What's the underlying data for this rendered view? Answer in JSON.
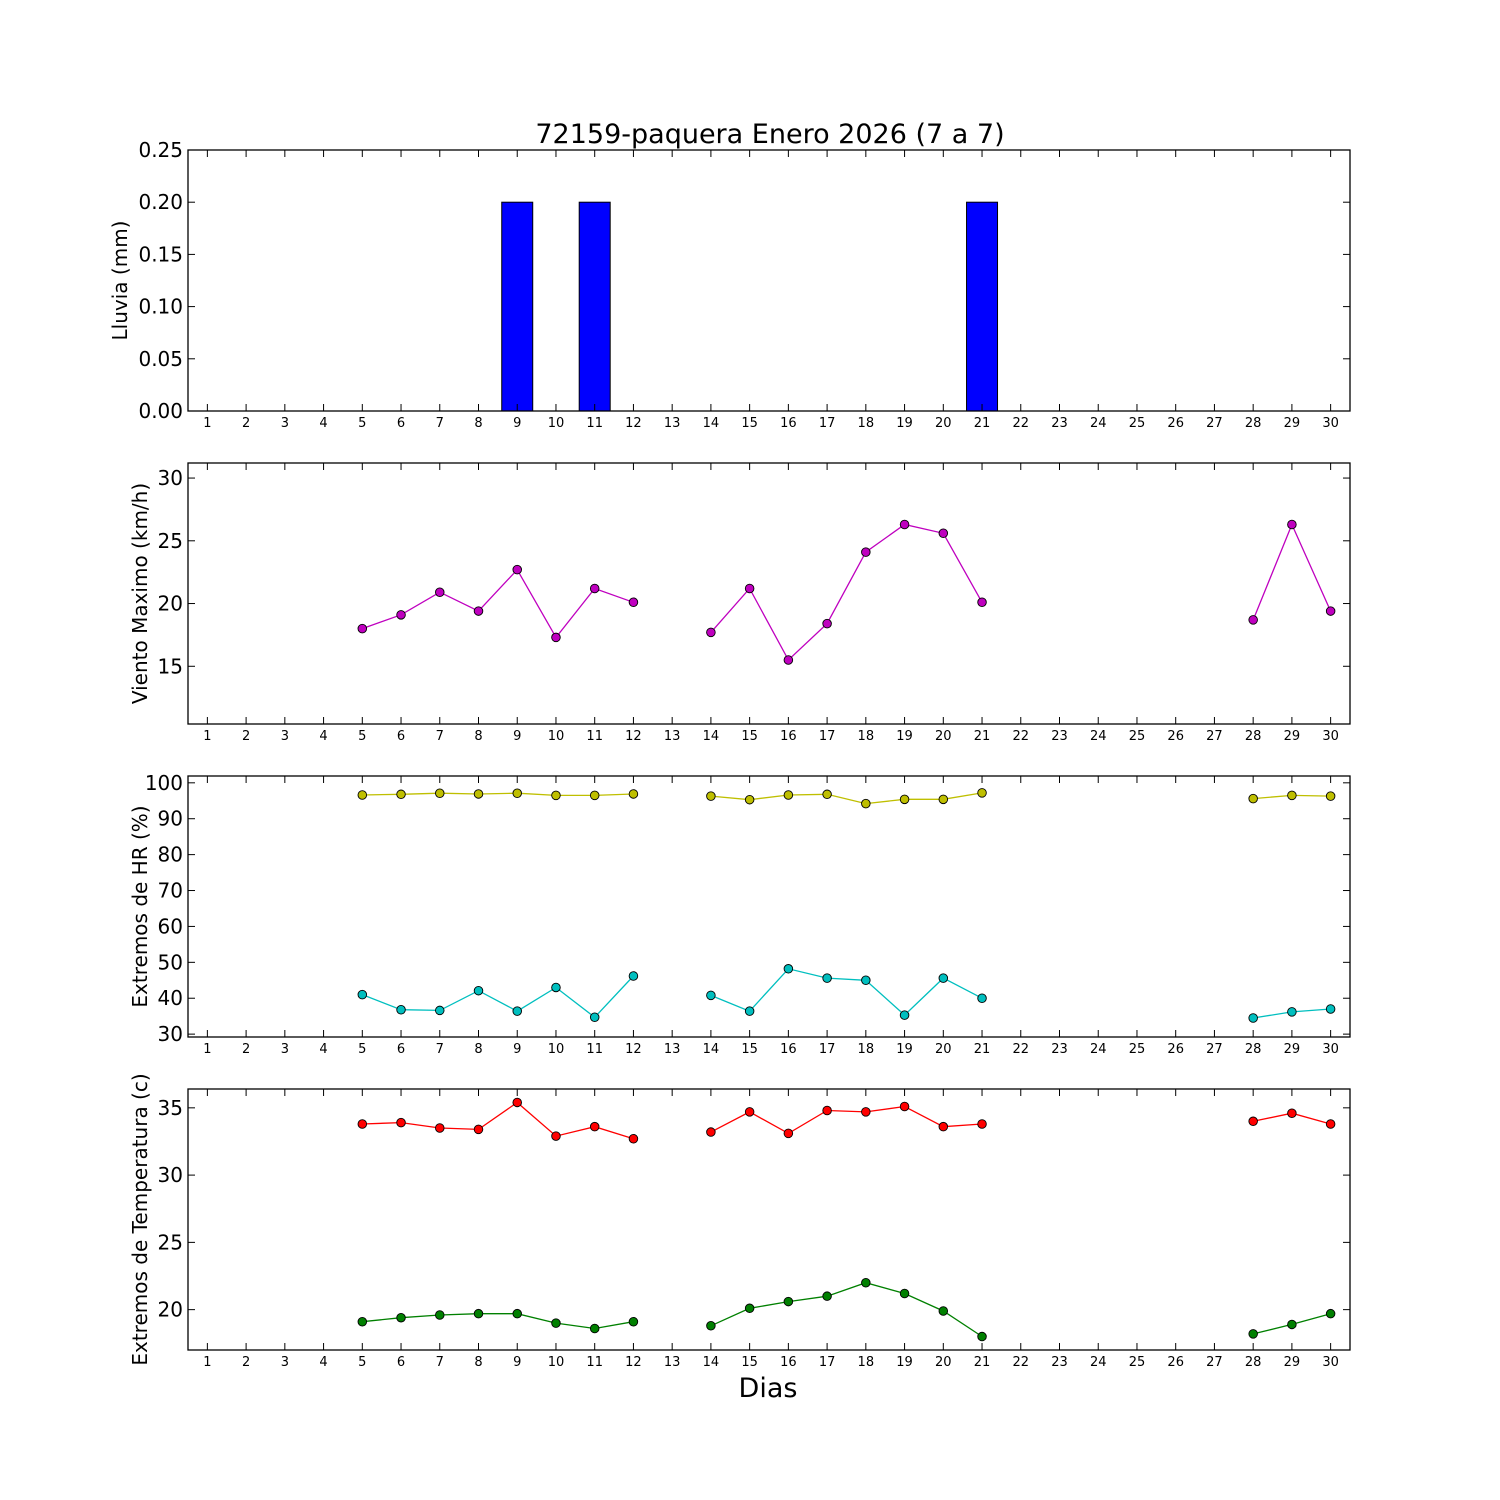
{
  "figure": {
    "title": "72159-paquera Enero 2026  (7 a 7)",
    "xlabel": "Dias"
  },
  "chart_data": [
    {
      "type": "bar",
      "ylabel": "Lluvia (mm)",
      "xlim": [
        0.5,
        30.5
      ],
      "ylim": [
        0,
        0.25
      ],
      "yticks": [
        0.0,
        0.05,
        0.1,
        0.15,
        0.2,
        0.25
      ],
      "ytick_labels": [
        "0.00",
        "0.05",
        "0.10",
        "0.15",
        "0.20",
        "0.25"
      ],
      "xticks": [
        1,
        2,
        3,
        4,
        5,
        6,
        7,
        8,
        9,
        10,
        11,
        12,
        13,
        14,
        15,
        16,
        17,
        18,
        19,
        20,
        21,
        22,
        23,
        24,
        25,
        26,
        27,
        28,
        29,
        30
      ],
      "grid": false,
      "series": [
        {
          "color": "#0000ff",
          "x": [
            1,
            2,
            3,
            4,
            5,
            6,
            7,
            8,
            9,
            10,
            11,
            12,
            13,
            14,
            15,
            16,
            17,
            18,
            19,
            20,
            21,
            22,
            23,
            24,
            25,
            26,
            27,
            28,
            29,
            30
          ],
          "values": [
            0,
            0,
            0,
            0,
            0,
            0,
            0,
            0,
            0.2,
            0,
            0.2,
            0,
            0,
            0,
            0,
            0,
            0,
            0,
            0,
            0,
            0.2,
            0,
            0,
            0,
            0,
            0,
            0,
            0,
            0,
            0
          ]
        }
      ]
    },
    {
      "type": "line",
      "ylabel": "Viento Maximo (km/h)",
      "xlim": [
        0.5,
        30.5
      ],
      "ylim": [
        10.4,
        31.2
      ],
      "yticks": [
        15,
        20,
        25,
        30
      ],
      "ytick_labels": [
        "15",
        "20",
        "25",
        "30"
      ],
      "xticks": [
        1,
        2,
        3,
        4,
        5,
        6,
        7,
        8,
        9,
        10,
        11,
        12,
        13,
        14,
        15,
        16,
        17,
        18,
        19,
        20,
        21,
        22,
        23,
        24,
        25,
        26,
        27,
        28,
        29,
        30
      ],
      "grid": false,
      "series": [
        {
          "color": "#bf00bf",
          "x": [
            1,
            2,
            3,
            4,
            5,
            6,
            7,
            8,
            9,
            10,
            11,
            12,
            13,
            14,
            15,
            16,
            17,
            18,
            19,
            20,
            21,
            22,
            23,
            24,
            25,
            26,
            27,
            28,
            29,
            30
          ],
          "values": [
            null,
            null,
            null,
            null,
            18.0,
            19.1,
            20.9,
            19.4,
            22.7,
            17.3,
            21.2,
            20.1,
            null,
            17.7,
            21.2,
            15.5,
            18.4,
            24.1,
            26.3,
            25.6,
            20.1,
            null,
            null,
            null,
            null,
            null,
            null,
            18.7,
            26.3,
            19.4
          ]
        }
      ]
    },
    {
      "type": "line",
      "ylabel": "Extremos de HR (%)",
      "xlim": [
        0.5,
        30.5
      ],
      "ylim": [
        29.2,
        101.9
      ],
      "yticks": [
        30,
        40,
        50,
        60,
        70,
        80,
        90,
        100
      ],
      "ytick_labels": [
        "30",
        "40",
        "50",
        "60",
        "70",
        "80",
        "90",
        "100"
      ],
      "xticks": [
        1,
        2,
        3,
        4,
        5,
        6,
        7,
        8,
        9,
        10,
        11,
        12,
        13,
        14,
        15,
        16,
        17,
        18,
        19,
        20,
        21,
        22,
        23,
        24,
        25,
        26,
        27,
        28,
        29,
        30
      ],
      "grid": false,
      "series": [
        {
          "color": "#bfbf00",
          "x": [
            1,
            2,
            3,
            4,
            5,
            6,
            7,
            8,
            9,
            10,
            11,
            12,
            13,
            14,
            15,
            16,
            17,
            18,
            19,
            20,
            21,
            22,
            23,
            24,
            25,
            26,
            27,
            28,
            29,
            30
          ],
          "values": [
            null,
            null,
            null,
            null,
            96.6,
            96.8,
            97.1,
            96.9,
            97.1,
            96.5,
            96.5,
            96.9,
            null,
            96.3,
            95.3,
            96.6,
            96.8,
            94.2,
            95.4,
            95.4,
            97.2,
            null,
            null,
            null,
            null,
            null,
            null,
            95.6,
            96.5,
            96.3
          ]
        },
        {
          "color": "#00bfbf",
          "x": [
            1,
            2,
            3,
            4,
            5,
            6,
            7,
            8,
            9,
            10,
            11,
            12,
            13,
            14,
            15,
            16,
            17,
            18,
            19,
            20,
            21,
            22,
            23,
            24,
            25,
            26,
            27,
            28,
            29,
            30
          ],
          "values": [
            null,
            null,
            null,
            null,
            41.0,
            36.8,
            36.6,
            42.1,
            36.4,
            43.0,
            34.7,
            46.2,
            null,
            40.8,
            36.4,
            48.2,
            45.6,
            45.0,
            35.3,
            45.6,
            40.0,
            null,
            null,
            null,
            null,
            null,
            null,
            34.5,
            36.2,
            37.0
          ]
        }
      ]
    },
    {
      "type": "line",
      "ylabel": "Extremos de Temperatura (c)",
      "xlim": [
        0.5,
        30.5
      ],
      "ylim": [
        17.0,
        36.4
      ],
      "yticks": [
        20,
        25,
        30,
        35
      ],
      "ytick_labels": [
        "20",
        "25",
        "30",
        "35"
      ],
      "xticks": [
        1,
        2,
        3,
        4,
        5,
        6,
        7,
        8,
        9,
        10,
        11,
        12,
        13,
        14,
        15,
        16,
        17,
        18,
        19,
        20,
        21,
        22,
        23,
        24,
        25,
        26,
        27,
        28,
        29,
        30
      ],
      "grid": false,
      "series": [
        {
          "color": "#ff0000",
          "x": [
            1,
            2,
            3,
            4,
            5,
            6,
            7,
            8,
            9,
            10,
            11,
            12,
            13,
            14,
            15,
            16,
            17,
            18,
            19,
            20,
            21,
            22,
            23,
            24,
            25,
            26,
            27,
            28,
            29,
            30
          ],
          "values": [
            null,
            null,
            null,
            null,
            33.8,
            33.9,
            33.5,
            33.4,
            35.4,
            32.9,
            33.6,
            32.7,
            null,
            33.2,
            34.7,
            33.1,
            34.8,
            34.7,
            35.1,
            33.6,
            33.8,
            null,
            null,
            null,
            null,
            null,
            null,
            34.0,
            34.6,
            33.8
          ]
        },
        {
          "color": "#008000",
          "x": [
            1,
            2,
            3,
            4,
            5,
            6,
            7,
            8,
            9,
            10,
            11,
            12,
            13,
            14,
            15,
            16,
            17,
            18,
            19,
            20,
            21,
            22,
            23,
            24,
            25,
            26,
            27,
            28,
            29,
            30
          ],
          "values": [
            null,
            null,
            null,
            null,
            19.1,
            19.4,
            19.6,
            19.7,
            19.7,
            19.0,
            18.6,
            19.1,
            null,
            18.8,
            20.1,
            20.6,
            21.0,
            22.0,
            21.2,
            19.9,
            18.0,
            null,
            null,
            null,
            null,
            null,
            null,
            18.2,
            18.9,
            19.7
          ]
        }
      ]
    }
  ]
}
